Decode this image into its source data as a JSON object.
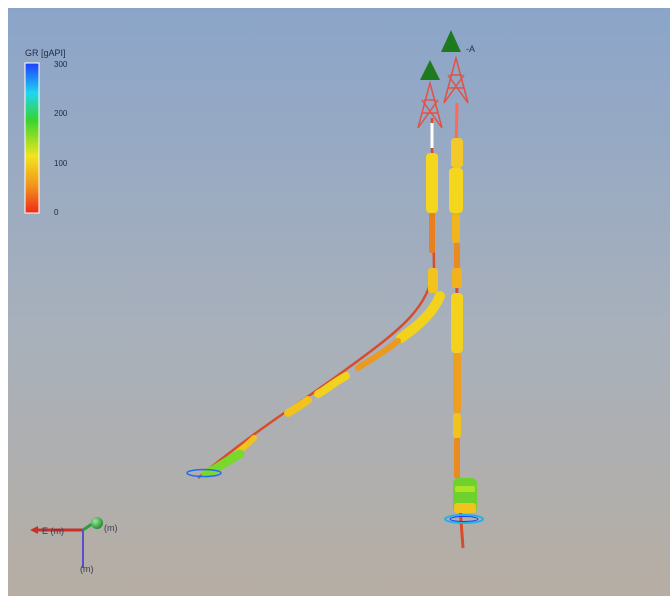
{
  "colorbar": {
    "title": "GR [gAPI]",
    "ticks": [
      "300",
      "200",
      "100",
      "0"
    ],
    "colors": [
      "#1f3dff",
      "#1fd6f0",
      "#36d42f",
      "#f2e51e",
      "#f2931c",
      "#ef2a17"
    ]
  },
  "well_label": "-A",
  "axes": {
    "x_label": "E (m)",
    "y_label": "(m)",
    "z_label": "(m)"
  },
  "colors": {
    "background_top": "#8ea6c8",
    "background_bottom": "#b3ada4",
    "well_path": "#d84c2c",
    "rig": "#e05246",
    "tree": "#1f7a1f"
  }
}
